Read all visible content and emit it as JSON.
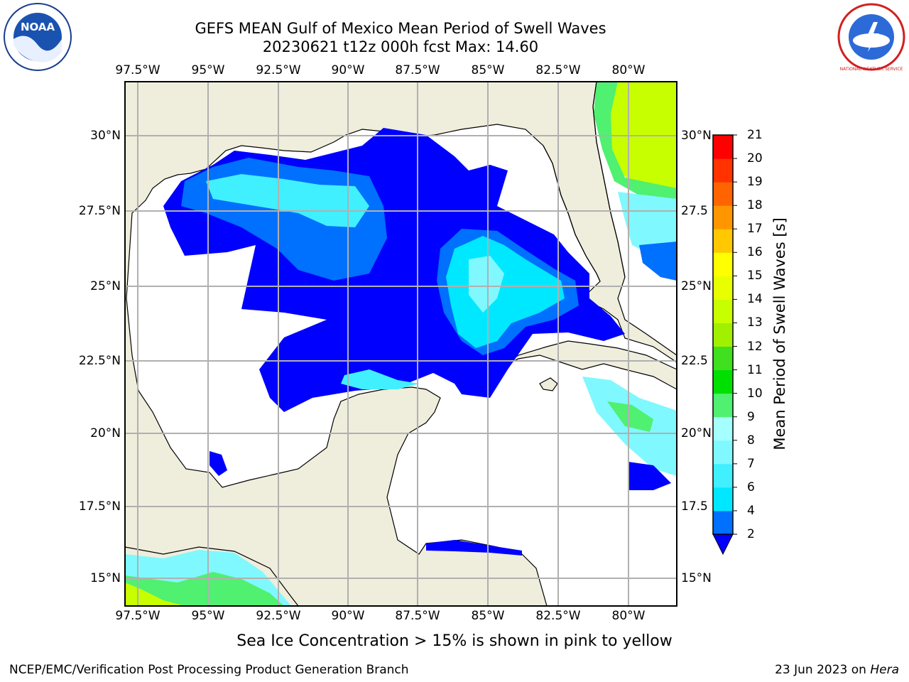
{
  "title": {
    "line1": "GEFS MEAN Gulf of Mexico Mean Period of Swell Waves",
    "line2": "20230621 t12z 000h fcst   Max: 14.60"
  },
  "logos": {
    "left": "NOAA",
    "right": "NATIONAL WEATHER SERVICE"
  },
  "map": {
    "lon_labels": [
      "97.5°W",
      "95°W",
      "92.5°W",
      "90°W",
      "87.5°W",
      "85°W",
      "82.5°W",
      "80°W"
    ],
    "lat_labels_left": [
      "30°N",
      "27.5°N",
      "25°N",
      "22.5°N",
      "20°N",
      "17.5°N",
      "15°N"
    ],
    "lat_labels_right": [
      "30°N",
      "27.5",
      "25°N",
      "22.5",
      "20°N",
      "17.5",
      "15°N"
    ],
    "grid": true,
    "colors": {
      "land": "#efeddc",
      "ocean": "#ffffff",
      "grid": "#b0b0b0"
    }
  },
  "colorbar": {
    "label": "Mean Period of Swell Waves [s]",
    "ticks": [
      "2",
      "4",
      "6",
      "7",
      "8",
      "9",
      "10",
      "11",
      "12",
      "13",
      "14",
      "15",
      "16",
      "17",
      "18",
      "19",
      "20",
      "21"
    ],
    "colors": [
      "#0000ff",
      "#0070ff",
      "#00e8ff",
      "#40f0ff",
      "#80f8ff",
      "#a6ffff",
      "#50f070",
      "#00e000",
      "#40e020",
      "#a0f000",
      "#c8ff00",
      "#e8ff00",
      "#ffff00",
      "#ffc800",
      "#ff9600",
      "#ff6400",
      "#ff3200",
      "#ff0000"
    ]
  },
  "note": "Sea Ice Concentration > 15% is shown in pink to yellow",
  "footer": {
    "left": "NCEP/EMC/Verification Post Processing Product Generation Branch",
    "date": "23 Jun 2023 on ",
    "host": "Hera"
  }
}
